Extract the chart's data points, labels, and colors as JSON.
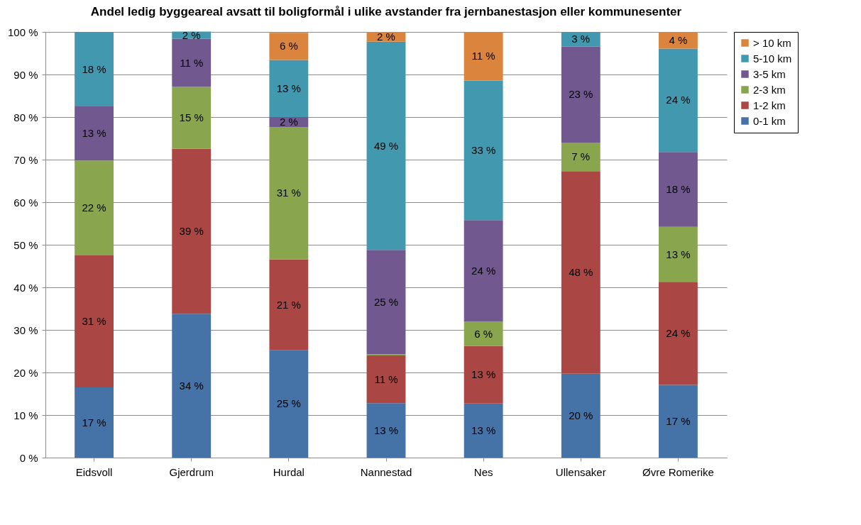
{
  "chart_data": {
    "type": "bar",
    "stacked": true,
    "title": "Andel ledig byggeareal avsatt til boligformål i ulike avstander fra jernbanestasjon eller kommunesenter",
    "categories": [
      "Eidsvoll",
      "Gjerdrum",
      "Hurdal",
      "Nannestad",
      "Nes",
      "Ullensaker",
      "Øvre Romerike"
    ],
    "series": [
      {
        "name": "0-1 km",
        "color": "#4572a7",
        "values": [
          16.5,
          33.8,
          25.2,
          12.8,
          12.7,
          19.7,
          17.1
        ],
        "value_labels": [
          "17 %",
          "34 %",
          "25 %",
          "13 %",
          "13 %",
          "20 %",
          "17 %"
        ]
      },
      {
        "name": "1-2 km",
        "color": "#aa4643",
        "values": [
          31,
          38.8,
          21.4,
          11.2,
          13.5,
          47.6,
          24.2
        ],
        "value_labels": [
          "31 %",
          "39 %",
          "21 %",
          "11 %",
          "13 %",
          "48 %",
          "24 %"
        ]
      },
      {
        "name": "2-3 km",
        "color": "#89a54e",
        "values": [
          22.3,
          14.5,
          31,
          0.3,
          5.7,
          6.7,
          12.9
        ],
        "value_labels": [
          "22 %",
          "15 %",
          "31 %",
          null,
          "6 %",
          "7 %",
          "13 %"
        ]
      },
      {
        "name": "3-5 km",
        "color": "#71588f",
        "values": [
          12.7,
          11.3,
          2.4,
          24.5,
          23.9,
          22.6,
          17.6
        ],
        "value_labels": [
          "13 %",
          "11 %",
          "2 %",
          "25 %",
          "24 %",
          "23 %",
          "18 %"
        ]
      },
      {
        "name": "5-10 km",
        "color": "#4198af",
        "values": [
          17.5,
          1.7,
          13.4,
          48.9,
          32.8,
          3.4,
          24.3
        ],
        "value_labels": [
          "18 %",
          "2 %",
          "13 %",
          "49 %",
          "33 %",
          "3 %",
          "24 %"
        ]
      },
      {
        "name": "> 10 km",
        "color": "#db843d",
        "values": [
          0,
          0,
          6.4,
          2.3,
          11.4,
          0,
          3.9
        ],
        "value_labels": [
          null,
          null,
          "6 %",
          "2 %",
          "11 %",
          null,
          "4 %"
        ]
      }
    ],
    "ylim": [
      0,
      100
    ],
    "yticks": [
      {
        "value": 0,
        "label": "0 %"
      },
      {
        "value": 10,
        "label": "10 %"
      },
      {
        "value": 20,
        "label": "20 %"
      },
      {
        "value": 30,
        "label": "30 %"
      },
      {
        "value": 40,
        "label": "40 %"
      },
      {
        "value": 50,
        "label": "50 %"
      },
      {
        "value": 60,
        "label": "60 %"
      },
      {
        "value": 70,
        "label": "70 %"
      },
      {
        "value": 80,
        "label": "80 %"
      },
      {
        "value": 90,
        "label": "90 %"
      },
      {
        "value": 100,
        "label": "100 %"
      }
    ],
    "grid": "y",
    "legend": "right"
  }
}
